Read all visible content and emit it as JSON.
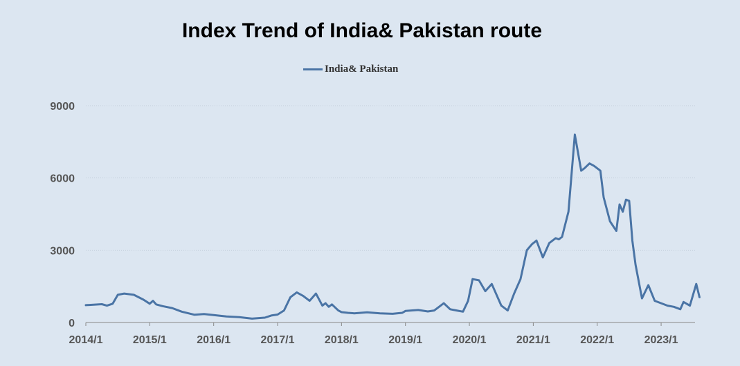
{
  "chart_data": {
    "type": "line",
    "title": "Index Trend of India& Pakistan route",
    "xlabel": "",
    "ylabel": "",
    "ylim": [
      0,
      9000
    ],
    "yticks": [
      0,
      3000,
      6000,
      9000
    ],
    "xticks": [
      "2014/1",
      "2015/1",
      "2016/1",
      "2017/1",
      "2018/1",
      "2019/1",
      "2020/1",
      "2021/1",
      "2022/1",
      "2023/1"
    ],
    "grid": true,
    "legend": "top-center",
    "series": [
      {
        "name": "India& Pakistan",
        "color": "#4a74a5",
        "x": [
          2014.0,
          2014.25,
          2014.33,
          2014.42,
          2014.5,
          2014.6,
          2014.75,
          2014.9,
          2015.0,
          2015.05,
          2015.1,
          2015.2,
          2015.35,
          2015.5,
          2015.7,
          2015.85,
          2016.0,
          2016.2,
          2016.4,
          2016.6,
          2016.8,
          2016.9,
          2017.0,
          2017.1,
          2017.2,
          2017.3,
          2017.4,
          2017.5,
          2017.6,
          2017.7,
          2017.75,
          2017.8,
          2017.85,
          2017.95,
          2018.0,
          2018.1,
          2018.2,
          2018.4,
          2018.6,
          2018.8,
          2018.95,
          2019.0,
          2019.2,
          2019.35,
          2019.45,
          2019.6,
          2019.7,
          2019.8,
          2019.9,
          2019.98,
          2020.05,
          2020.15,
          2020.25,
          2020.35,
          2020.5,
          2020.6,
          2020.7,
          2020.8,
          2020.9,
          2020.98,
          2021.05,
          2021.15,
          2021.25,
          2021.35,
          2021.4,
          2021.45,
          2021.55,
          2021.65,
          2021.75,
          2021.8,
          2021.88,
          2021.95,
          2022.05,
          2022.1,
          2022.2,
          2022.3,
          2022.35,
          2022.4,
          2022.45,
          2022.5,
          2022.55,
          2022.6,
          2022.7,
          2022.8,
          2022.9,
          2023.0,
          2023.1,
          2023.2,
          2023.3,
          2023.35,
          2023.45,
          2023.55,
          2023.6
        ],
        "values": [
          720,
          760,
          700,
          780,
          1150,
          1200,
          1150,
          950,
          780,
          900,
          750,
          680,
          600,
          450,
          320,
          350,
          310,
          250,
          220,
          160,
          200,
          290,
          330,
          500,
          1050,
          1250,
          1100,
          900,
          1200,
          700,
          800,
          650,
          750,
          500,
          430,
          400,
          380,
          420,
          380,
          360,
          400,
          480,
          520,
          460,
          500,
          800,
          550,
          500,
          450,
          900,
          1800,
          1750,
          1300,
          1600,
          700,
          500,
          1200,
          1800,
          3000,
          3250,
          3400,
          2700,
          3300,
          3500,
          3450,
          3550,
          4600,
          7800,
          6300,
          6400,
          6600,
          6500,
          6300,
          5200,
          4200,
          3800,
          4900,
          4600,
          5100,
          5050,
          3400,
          2400,
          1000,
          1550,
          900,
          800,
          700,
          650,
          550,
          850,
          700,
          1600,
          1050
        ]
      }
    ]
  }
}
